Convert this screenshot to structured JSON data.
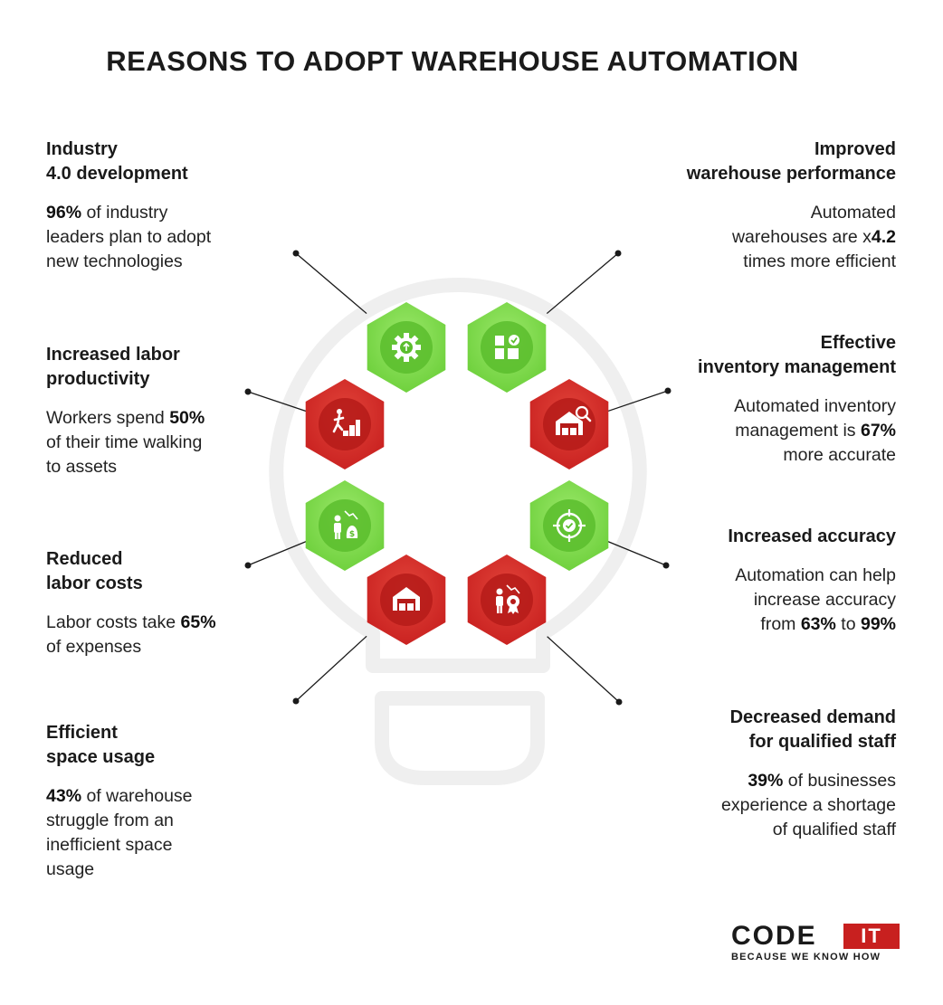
{
  "title": "REASONS TO ADOPT WAREHOUSE AUTOMATION",
  "colors": {
    "green": "#6ccf3a",
    "red": "#c8201f",
    "outline": "#efefef"
  },
  "reasons": [
    {
      "heading": [
        "Industry",
        "4.0 development"
      ],
      "body": [
        [
          {
            "t": "96%",
            "b": true
          },
          {
            "t": " of industry"
          }
        ],
        [
          {
            "t": "leaders plan to adopt"
          }
        ],
        [
          {
            "t": "new technologies"
          }
        ]
      ],
      "icon": "gear-upload-icon",
      "color": "green"
    },
    {
      "heading": [
        "Improved ",
        "warehouse performance"
      ],
      "body": [
        [
          {
            "t": "Automated"
          }
        ],
        [
          {
            "t": "warehouses are x"
          },
          {
            "t": "4.2",
            "b": true
          }
        ],
        [
          {
            "t": "times more efficient"
          }
        ]
      ],
      "icon": "boxes-check-icon",
      "color": "green"
    },
    {
      "heading": [
        "Increased labor",
        "productivity"
      ],
      "body": [
        [
          {
            "t": "Workers spend "
          },
          {
            "t": "50%",
            "b": true
          }
        ],
        [
          {
            "t": "of their time walking"
          }
        ],
        [
          {
            "t": "to assets"
          }
        ]
      ],
      "icon": "worker-stairs-icon",
      "color": "red"
    },
    {
      "heading": [
        "Effective ",
        "inventory management"
      ],
      "body": [
        [
          {
            "t": "Automated inventory"
          }
        ],
        [
          {
            "t": "management is "
          },
          {
            "t": "67%",
            "b": true
          }
        ],
        [
          {
            "t": "more accurate"
          }
        ]
      ],
      "icon": "warehouse-search-icon",
      "color": "red"
    },
    {
      "heading": [
        "Reduced",
        "labor costs"
      ],
      "body": [
        [
          {
            "t": "Labor costs take "
          },
          {
            "t": "65%",
            "b": true
          }
        ],
        [
          {
            "t": "of expenses"
          }
        ]
      ],
      "icon": "worker-money-icon",
      "color": "green"
    },
    {
      "heading": [
        "Increased accuracy"
      ],
      "body": [
        [
          {
            "t": "Automation can help"
          }
        ],
        [
          {
            "t": "increase accuracy"
          }
        ],
        [
          {
            "t": "from "
          },
          {
            "t": "63%",
            "b": true
          },
          {
            "t": " to "
          },
          {
            "t": "99%",
            "b": true
          }
        ]
      ],
      "icon": "target-check-icon",
      "color": "green"
    },
    {
      "heading": [
        "Efficient",
        "space usage"
      ],
      "body": [
        [
          {
            "t": "43%",
            "b": true
          },
          {
            "t": " of warehouse"
          }
        ],
        [
          {
            "t": "struggle from an"
          }
        ],
        [
          {
            "t": "inefficient space"
          }
        ],
        [
          {
            "t": "usage"
          }
        ]
      ],
      "icon": "warehouse-icon",
      "color": "red"
    },
    {
      "heading": [
        "Decreased demand ",
        "for qualified staff"
      ],
      "body": [
        [
          {
            "t": "39%",
            "b": true
          },
          {
            "t": " of businesses"
          }
        ],
        [
          {
            "t": "experience a shortage"
          }
        ],
        [
          {
            "t": "of qualified staff"
          }
        ]
      ],
      "icon": "worker-badge-icon",
      "color": "red"
    }
  ],
  "logo": {
    "name": "CODE",
    "badge": "IT",
    "tagline": "BECAUSE WE KNOW HOW"
  }
}
